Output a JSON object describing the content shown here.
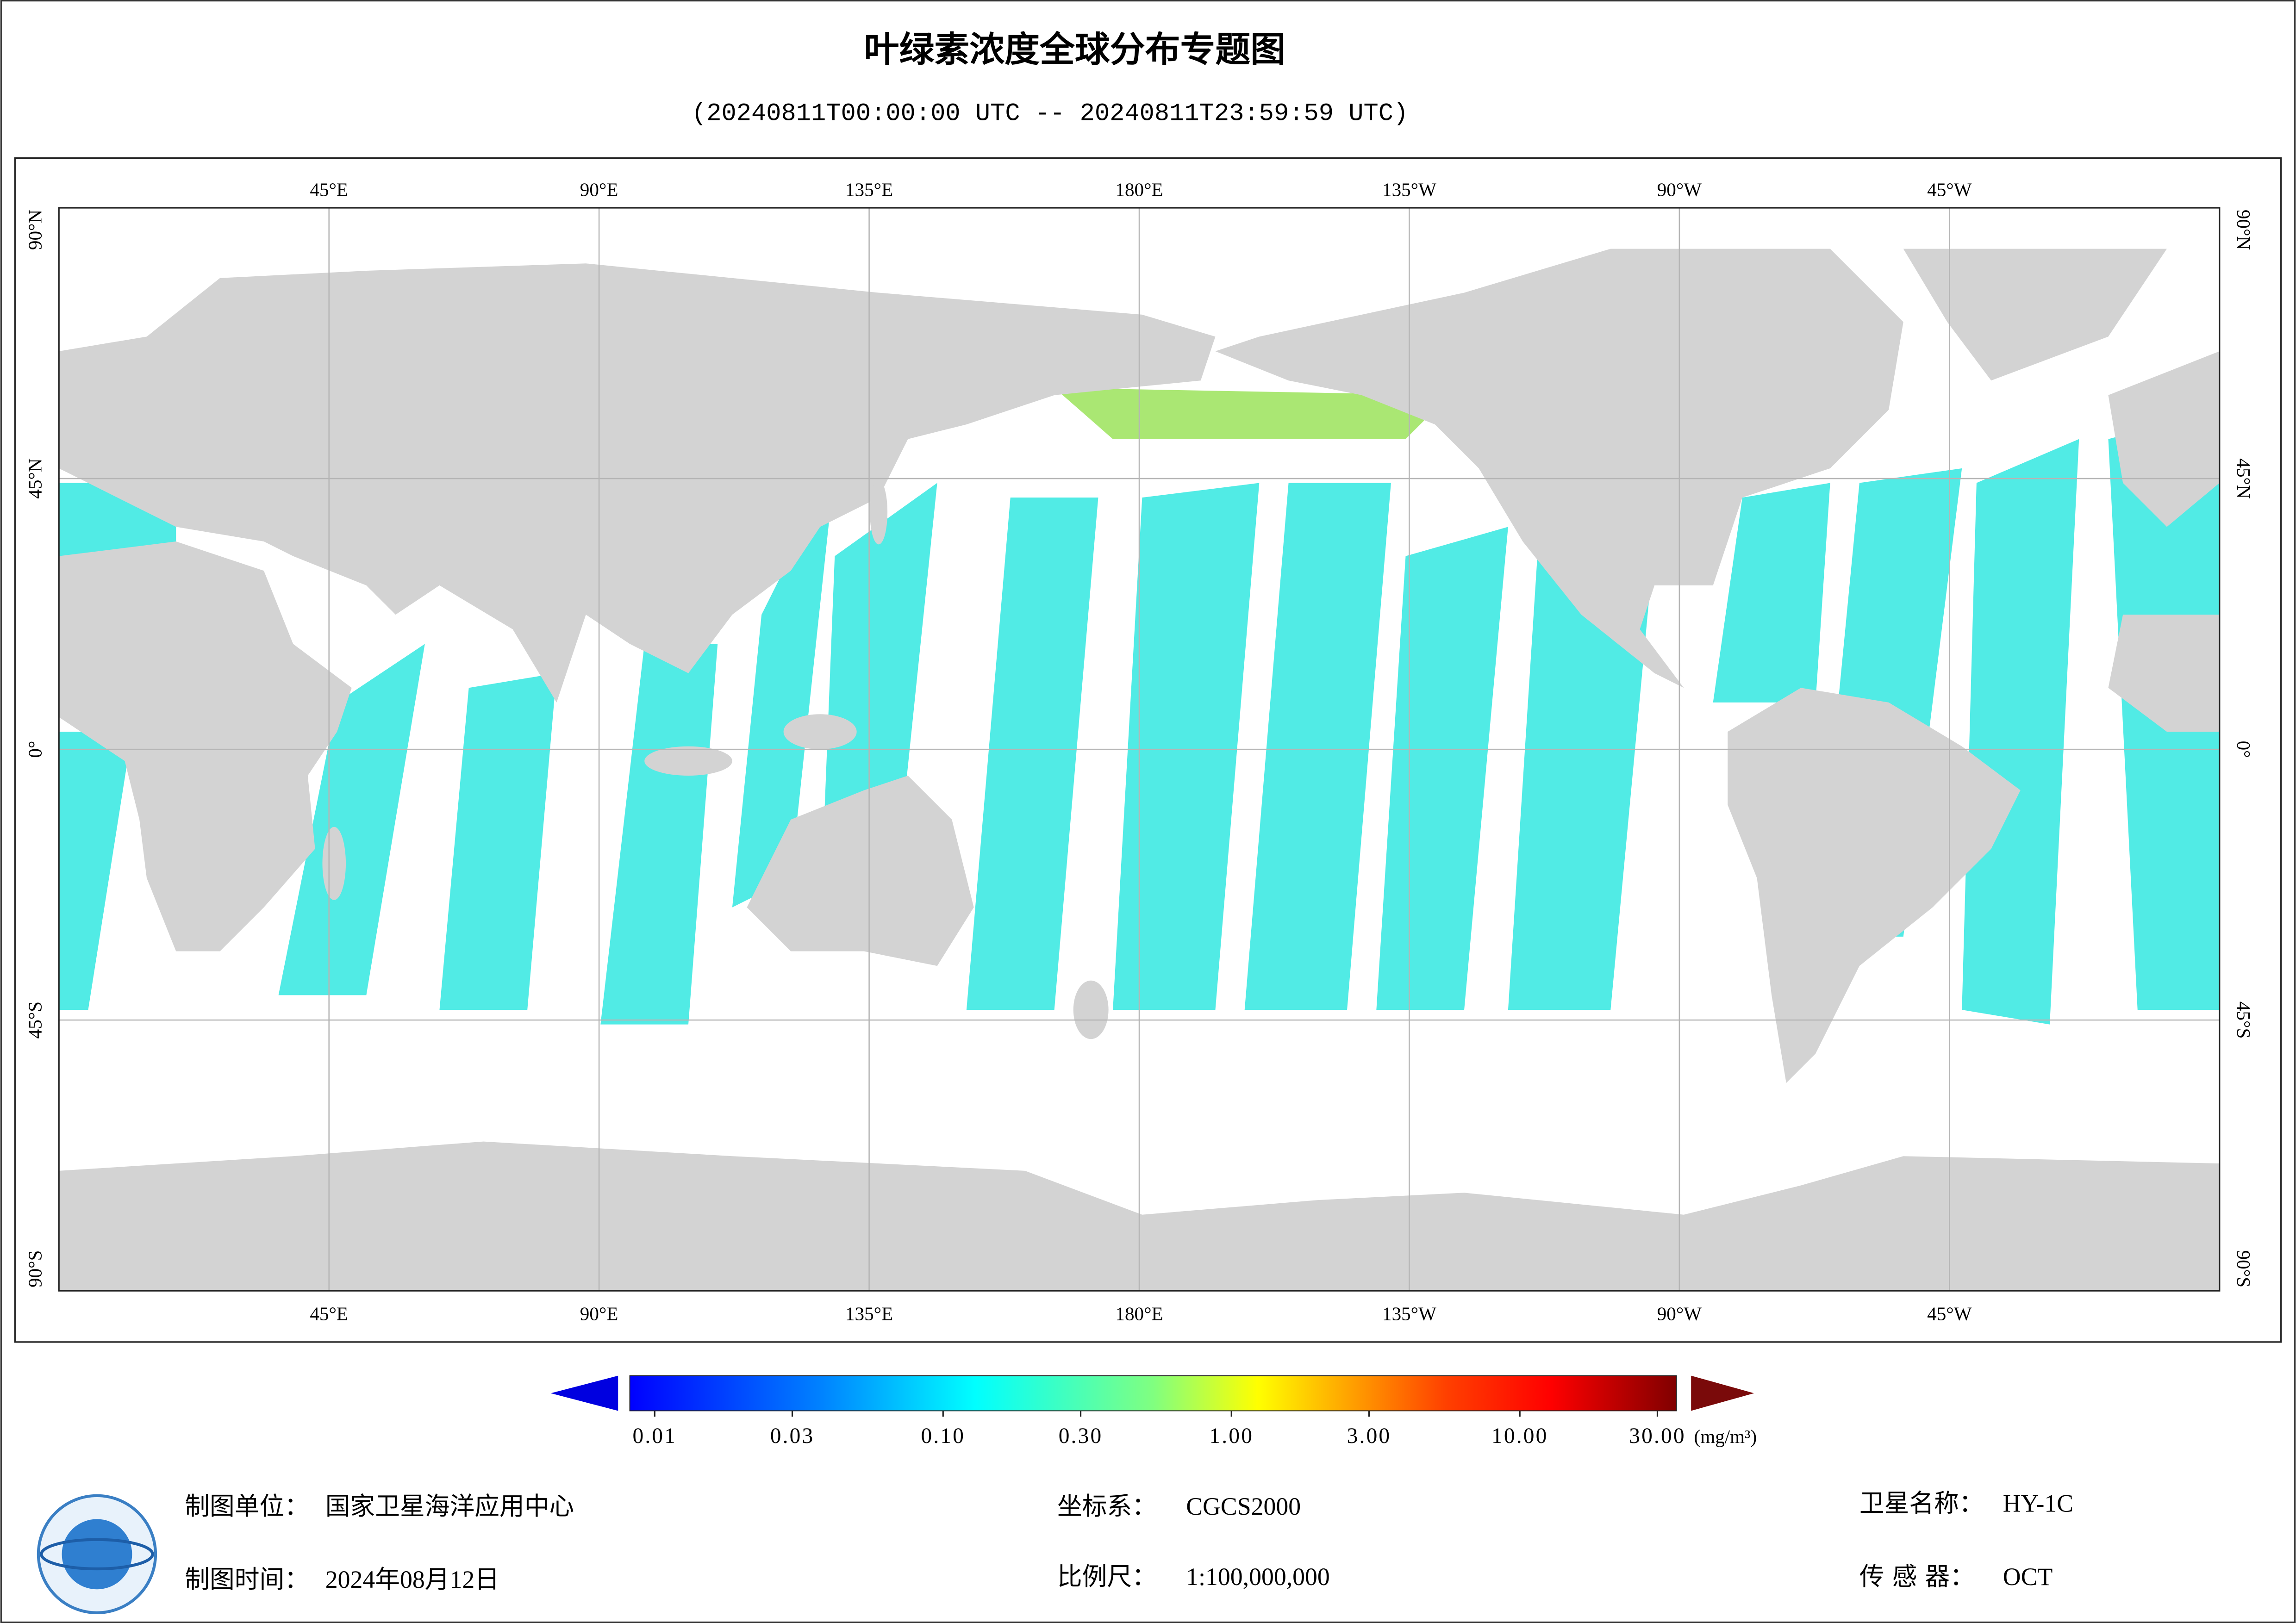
{
  "title": "叶绿素浓度全球分布专题图",
  "subtitle": "(20240811T00:00:00 UTC -- 20240811T23:59:59 UTC)",
  "map": {
    "lon_ticks": [
      {
        "value": 45,
        "label": "45°E"
      },
      {
        "value": 90,
        "label": "90°E"
      },
      {
        "value": 135,
        "label": "135°E"
      },
      {
        "value": 180,
        "label": "180°E"
      },
      {
        "value": -135,
        "label": "135°W"
      },
      {
        "value": -90,
        "label": "90°W"
      },
      {
        "value": -45,
        "label": "45°W"
      }
    ],
    "lat_ticks": [
      {
        "value": 90,
        "label": "90°N"
      },
      {
        "value": 45,
        "label": "45°N"
      },
      {
        "value": 0,
        "label": "0°"
      },
      {
        "value": -45,
        "label": "45°S"
      },
      {
        "value": -90,
        "label": "90°S"
      }
    ]
  },
  "colorbar": {
    "scale": "log",
    "range": [
      0.01,
      30
    ],
    "ticks": [
      0.01,
      0.03,
      {
        "value": 0.1,
        "label": "0.10"
      },
      {
        "value": 0.3,
        "label": "0.30"
      },
      {
        "value": 1,
        "label": "1.00"
      },
      {
        "value": 3,
        "label": "3.00"
      },
      {
        "value": 10,
        "label": "10.00"
      },
      {
        "value": 30,
        "label": "30.00"
      }
    ],
    "unit": "(mg/m³)"
  },
  "footer": [
    {
      "label": "制图单位：",
      "value": "国家卫星海洋应用中心"
    },
    {
      "label": "坐标系：",
      "value": "CGCS2000"
    },
    {
      "label": "卫星名称：",
      "value": "HY-1C"
    },
    {
      "label": "制图时间：",
      "value": "2024年08月12日"
    },
    {
      "label": "比例尺：",
      "value": "1:100,000,000"
    },
    {
      "label": "传 感 器：",
      "value": "OCT"
    }
  ]
}
